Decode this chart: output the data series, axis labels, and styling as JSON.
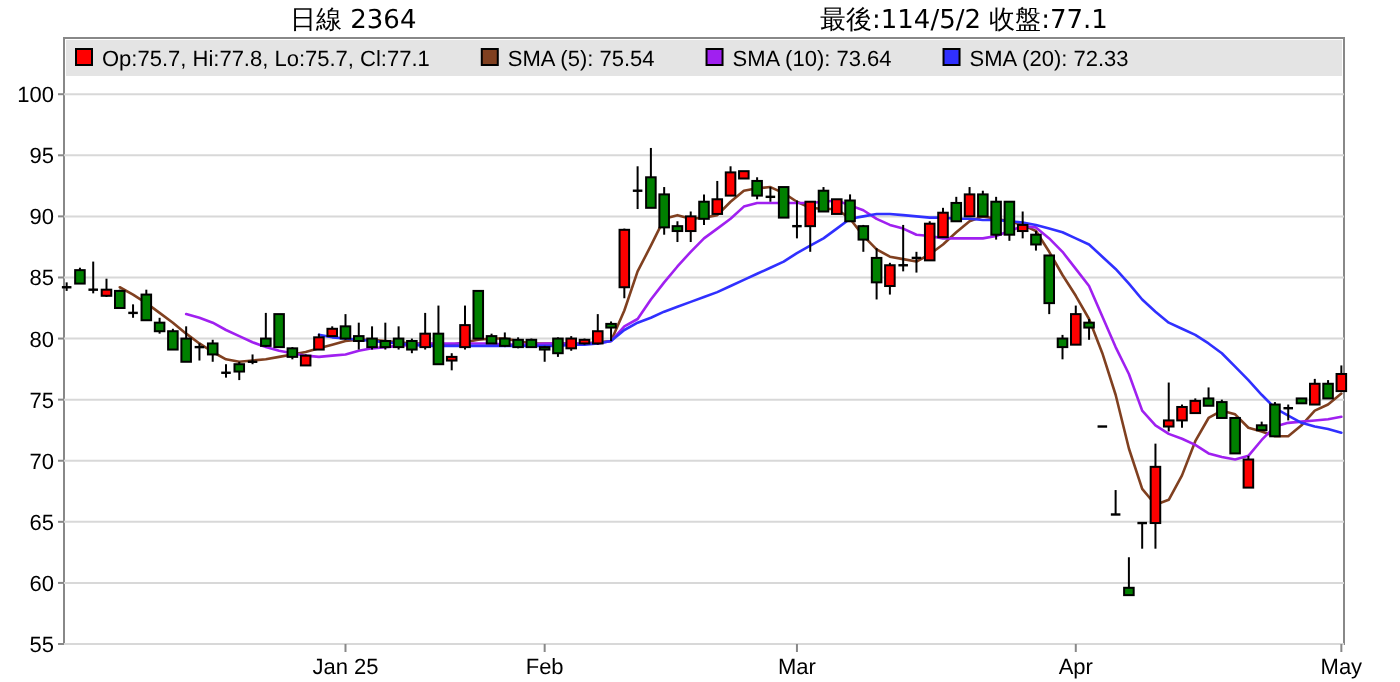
{
  "chart_data": {
    "type": "candlestick",
    "title": "日線 2364",
    "subtitle": "最後:114/5/2 收盤:77.1",
    "categories": [
      null,
      null,
      null,
      null,
      null,
      null,
      null,
      null,
      null,
      null,
      null,
      null,
      null,
      null,
      null,
      null,
      null,
      null,
      null,
      null,
      null,
      "Jan 25",
      null,
      null,
      null,
      null,
      null,
      null,
      null,
      null,
      null,
      null,
      null,
      null,
      null,
      null,
      "Feb",
      null,
      null,
      null,
      null,
      null,
      null,
      null,
      null,
      null,
      null,
      null,
      null,
      null,
      null,
      null,
      null,
      null,
      null,
      "Mar",
      null,
      null,
      null,
      null,
      null,
      null,
      null,
      null,
      null,
      null,
      null,
      null,
      null,
      null,
      null,
      null,
      null,
      null,
      null,
      null,
      "Apr",
      null,
      null,
      null,
      null,
      null,
      null,
      null,
      null,
      null,
      null,
      null,
      null,
      null,
      null,
      null,
      null,
      null,
      null,
      null,
      "May"
    ],
    "ylim": [
      55,
      104.6
    ],
    "yticks": [
      55,
      60,
      65,
      70,
      75,
      80,
      85,
      90,
      95,
      100
    ],
    "grid": "y",
    "legend": "top",
    "series": [
      {
        "name": "Op:75.7, Hi:77.8, Lo:75.7, Cl:77.1",
        "color": "#ff0000",
        "colors": [
          "#000000",
          "#008000",
          "#000000",
          "#ff0000",
          "#008000",
          "#000000",
          "#008000",
          "#008000",
          "#008000",
          "#008000",
          "#000000",
          "#008000",
          "#000000",
          "#008000",
          "#000000",
          "#008000",
          "#008000",
          "#008000",
          "#ff0000",
          "#ff0000",
          "#ff0000",
          "#008000",
          "#008000",
          "#008000",
          "#008000",
          "#008000",
          "#008000",
          "#ff0000",
          "#008000",
          "#ff0000",
          "#ff0000",
          "#008000",
          "#008000",
          "#008000",
          "#008000",
          "#008000",
          "#008000",
          "#008000",
          "#ff0000",
          "#ff0000",
          "#ff0000",
          "#008000",
          "#ff0000",
          "#000000",
          "#008000",
          "#008000",
          "#008000",
          "#ff0000",
          "#008000",
          "#ff0000",
          "#ff0000",
          "#ff0000",
          "#008000",
          "#000000",
          "#008000",
          "#000000",
          "#ff0000",
          "#008000",
          "#ff0000",
          "#008000",
          "#008000",
          "#008000",
          "#ff0000",
          "#000000",
          "#000000",
          "#ff0000",
          "#ff0000",
          "#008000",
          "#ff0000",
          "#008000",
          "#008000",
          "#008000",
          "#ff0000",
          "#008000",
          "#008000",
          "#008000",
          "#ff0000",
          "#008000",
          "#000000",
          "#000000",
          "#008000",
          "#000000",
          "#ff0000",
          "#ff0000",
          "#ff0000",
          "#ff0000",
          "#008000",
          "#008000",
          "#008000",
          "#ff0000",
          "#008000",
          "#008000",
          "#000000",
          "#008000",
          "#ff0000",
          "#008000",
          "#ff0000"
        ],
        "ohlc": [
          [
            84.2,
            84.6,
            83.9,
            84.2
          ],
          [
            85.6,
            85.8,
            84.5,
            84.5
          ],
          [
            84.0,
            86.3,
            83.7,
            84.0
          ],
          [
            83.5,
            84.9,
            83.4,
            84.0
          ],
          [
            83.9,
            84.0,
            82.5,
            82.5
          ],
          [
            82.1,
            82.8,
            81.7,
            82.1
          ],
          [
            83.6,
            84.0,
            81.5,
            81.5
          ],
          [
            81.3,
            81.7,
            80.4,
            80.6
          ],
          [
            80.6,
            80.8,
            79.1,
            79.1
          ],
          [
            80.0,
            81.0,
            78.1,
            78.1
          ],
          [
            79.3,
            79.6,
            78.2,
            79.3
          ],
          [
            79.6,
            79.9,
            78.1,
            78.7
          ],
          [
            77.2,
            77.9,
            76.8,
            77.2
          ],
          [
            77.9,
            78.1,
            76.6,
            77.3
          ],
          [
            78.1,
            78.7,
            77.9,
            78.1
          ],
          [
            80.0,
            82.1,
            79.3,
            79.4
          ],
          [
            82.0,
            82.0,
            79.3,
            79.3
          ],
          [
            79.2,
            79.3,
            78.3,
            78.5
          ],
          [
            77.8,
            78.7,
            77.8,
            78.6
          ],
          [
            79.1,
            80.4,
            79.1,
            80.1
          ],
          [
            80.2,
            81.0,
            80.2,
            80.8
          ],
          [
            81.0,
            82.0,
            79.9,
            80.0
          ],
          [
            80.2,
            81.3,
            79.1,
            79.8
          ],
          [
            80.0,
            81.0,
            79.1,
            79.3
          ],
          [
            79.8,
            81.3,
            79.1,
            79.3
          ],
          [
            80.0,
            81.0,
            79.1,
            79.3
          ],
          [
            79.8,
            80.0,
            78.8,
            79.1
          ],
          [
            79.3,
            82.1,
            79.1,
            80.4
          ],
          [
            80.4,
            82.7,
            77.9,
            77.9
          ],
          [
            78.2,
            78.8,
            77.4,
            78.5
          ],
          [
            79.3,
            82.7,
            79.1,
            81.1
          ],
          [
            83.9,
            83.9,
            80.0,
            80.0
          ],
          [
            80.2,
            80.4,
            79.6,
            79.6
          ],
          [
            80.0,
            80.5,
            79.3,
            79.4
          ],
          [
            79.9,
            80.1,
            79.2,
            79.3
          ],
          [
            79.9,
            80.0,
            79.3,
            79.3
          ],
          [
            79.3,
            79.4,
            78.1,
            79.1
          ],
          [
            80.0,
            80.1,
            78.5,
            78.8
          ],
          [
            79.2,
            80.2,
            79.0,
            80.0
          ],
          [
            79.6,
            80.0,
            79.5,
            79.9
          ],
          [
            79.6,
            82.0,
            79.5,
            80.6
          ],
          [
            81.2,
            81.4,
            79.8,
            80.9
          ],
          [
            84.2,
            89.0,
            83.3,
            88.9
          ],
          [
            92.1,
            94.1,
            90.6,
            92.1
          ],
          [
            93.2,
            95.6,
            90.7,
            90.7
          ],
          [
            91.8,
            92.4,
            88.5,
            89.1
          ],
          [
            89.2,
            89.6,
            87.9,
            88.8
          ],
          [
            88.8,
            90.4,
            87.9,
            90.0
          ],
          [
            91.2,
            91.8,
            89.3,
            89.8
          ],
          [
            90.2,
            92.9,
            90.2,
            91.4
          ],
          [
            91.7,
            94.1,
            91.7,
            93.6
          ],
          [
            93.1,
            93.7,
            93.1,
            93.7
          ],
          [
            92.9,
            93.2,
            91.4,
            91.7
          ],
          [
            91.6,
            92.4,
            91.2,
            91.6
          ],
          [
            92.4,
            92.4,
            89.9,
            89.9
          ],
          [
            89.2,
            91.3,
            88.2,
            89.2
          ],
          [
            89.2,
            91.2,
            87.1,
            91.2
          ],
          [
            92.1,
            92.4,
            90.4,
            90.4
          ],
          [
            90.2,
            91.4,
            90.2,
            91.4
          ],
          [
            91.3,
            91.8,
            89.6,
            89.6
          ],
          [
            89.2,
            89.3,
            87.1,
            88.1
          ],
          [
            86.6,
            87.4,
            83.2,
            84.6
          ],
          [
            84.3,
            86.2,
            83.6,
            86.0
          ],
          [
            86.0,
            89.3,
            85.5,
            86.0
          ],
          [
            86.6,
            87.1,
            85.4,
            86.6
          ],
          [
            86.4,
            89.6,
            86.4,
            89.4
          ],
          [
            88.3,
            90.7,
            88.3,
            90.3
          ],
          [
            91.1,
            91.6,
            89.6,
            89.6
          ],
          [
            90.0,
            92.4,
            90.0,
            91.8
          ],
          [
            91.8,
            92.1,
            90.0,
            90.0
          ],
          [
            91.2,
            91.6,
            88.1,
            88.5
          ],
          [
            91.2,
            91.2,
            88.0,
            88.5
          ],
          [
            88.8,
            90.4,
            88.2,
            89.3
          ],
          [
            88.5,
            88.8,
            87.2,
            87.7
          ],
          [
            86.8,
            86.8,
            82.0,
            82.9
          ],
          [
            80.0,
            80.3,
            78.3,
            79.3
          ],
          [
            79.5,
            82.7,
            79.5,
            82.0
          ],
          [
            81.3,
            81.6,
            79.9,
            80.9
          ],
          [
            72.8,
            72.8,
            72.8,
            72.8
          ],
          [
            65.6,
            67.6,
            65.6,
            65.6
          ],
          [
            59.6,
            62.1,
            59.0,
            59.0
          ],
          [
            64.9,
            64.9,
            62.8,
            64.9
          ],
          [
            64.9,
            71.4,
            62.8,
            69.5
          ],
          [
            72.8,
            76.4,
            72.4,
            73.3
          ],
          [
            73.3,
            74.6,
            72.7,
            74.4
          ],
          [
            73.9,
            75.1,
            73.9,
            74.9
          ],
          [
            75.1,
            76.0,
            74.5,
            74.5
          ],
          [
            74.8,
            75.0,
            73.5,
            73.5
          ],
          [
            73.5,
            73.5,
            70.6,
            70.6
          ],
          [
            67.8,
            70.4,
            67.8,
            70.1
          ],
          [
            72.9,
            73.2,
            72.5,
            72.5
          ],
          [
            74.6,
            74.8,
            72.0,
            72.0
          ],
          [
            74.3,
            74.6,
            73.3,
            74.3
          ],
          [
            75.1,
            75.1,
            74.7,
            74.7
          ],
          [
            74.6,
            76.7,
            74.6,
            76.3
          ],
          [
            76.3,
            76.6,
            75.1,
            75.1
          ],
          [
            75.7,
            77.8,
            75.7,
            77.1
          ]
        ]
      },
      {
        "type": "line",
        "name": "SMA (5): 75.54",
        "color": "#804020",
        "values": [
          null,
          null,
          null,
          null,
          84.2,
          83.6,
          82.9,
          82.1,
          81.3,
          80.4,
          79.6,
          78.9,
          78.3,
          78.1,
          78.2,
          78.3,
          78.5,
          78.7,
          78.9,
          79.2,
          79.5,
          79.8,
          79.9,
          79.9,
          79.8,
          79.7,
          79.6,
          79.6,
          79.5,
          79.5,
          79.7,
          79.9,
          80.0,
          80.0,
          79.8,
          79.6,
          79.6,
          79.6,
          79.6,
          79.6,
          79.7,
          79.8,
          82.3,
          85.5,
          87.6,
          89.8,
          90.1,
          89.8,
          89.9,
          90.1,
          91.2,
          92.1,
          92.3,
          92.4,
          91.9,
          91.2,
          90.7,
          90.6,
          90.6,
          89.8,
          88.4,
          87.3,
          86.7,
          86.5,
          86.3,
          86.9,
          87.7,
          88.7,
          89.6,
          90.0,
          89.8,
          89.6,
          89.3,
          88.8,
          87.1,
          85.2,
          83.5,
          81.6,
          78.8,
          75.4,
          71.0,
          67.7,
          66.4,
          66.8,
          68.8,
          71.6,
          73.5,
          74.1,
          73.8,
          72.7,
          72.4,
          72.0,
          72.0,
          72.9,
          74.1,
          74.6,
          75.5
        ]
      },
      {
        "type": "line",
        "name": "SMA (10): 73.64",
        "color": "#a020f0",
        "values": [
          null,
          null,
          null,
          null,
          null,
          null,
          null,
          null,
          null,
          82.0,
          81.7,
          81.3,
          80.7,
          80.2,
          79.7,
          79.3,
          79.0,
          78.8,
          78.6,
          78.5,
          78.6,
          78.7,
          79.0,
          79.2,
          79.3,
          79.4,
          79.5,
          79.6,
          79.6,
          79.6,
          79.6,
          79.6,
          79.6,
          79.5,
          79.5,
          79.5,
          79.6,
          79.6,
          79.6,
          79.6,
          79.6,
          79.8,
          81.0,
          81.6,
          83.2,
          84.6,
          85.9,
          87.1,
          88.2,
          89.0,
          89.8,
          90.8,
          91.1,
          91.1,
          91.1,
          91.1,
          91.1,
          91.2,
          91.3,
          90.9,
          90.5,
          89.8,
          89.3,
          89.0,
          88.5,
          88.4,
          88.2,
          88.2,
          88.2,
          88.2,
          88.4,
          88.8,
          89.2,
          89.1,
          88.2,
          87.1,
          85.7,
          84.3,
          81.8,
          79.3,
          77.1,
          74.1,
          72.9,
          72.2,
          71.8,
          71.3,
          70.6,
          70.3,
          70.1,
          70.4,
          71.7,
          72.8,
          73.1,
          73.2,
          73.3,
          73.4,
          73.6
        ]
      },
      {
        "type": "line",
        "name": "SMA (20): 72.33",
        "color": "#3030ff",
        "values": [
          null,
          null,
          null,
          null,
          null,
          null,
          null,
          null,
          null,
          null,
          null,
          null,
          null,
          null,
          null,
          null,
          null,
          null,
          null,
          80.3,
          80.1,
          80.0,
          79.9,
          79.8,
          79.7,
          79.6,
          79.5,
          79.4,
          79.4,
          79.4,
          79.4,
          79.4,
          79.4,
          79.4,
          79.4,
          79.4,
          79.4,
          79.4,
          79.5,
          79.5,
          79.6,
          79.8,
          80.7,
          81.3,
          81.7,
          82.2,
          82.6,
          83.0,
          83.4,
          83.8,
          84.3,
          84.8,
          85.3,
          85.8,
          86.3,
          87.0,
          87.6,
          88.2,
          89.0,
          89.8,
          90.0,
          90.2,
          90.2,
          90.1,
          90.0,
          89.9,
          89.9,
          89.8,
          89.8,
          89.7,
          89.7,
          89.6,
          89.5,
          89.3,
          89.0,
          88.7,
          88.2,
          87.7,
          86.7,
          85.7,
          84.5,
          83.2,
          82.2,
          81.3,
          80.8,
          80.3,
          79.6,
          78.8,
          77.7,
          76.6,
          75.4,
          74.3,
          73.7,
          73.1,
          72.8,
          72.6,
          72.3
        ]
      }
    ]
  }
}
